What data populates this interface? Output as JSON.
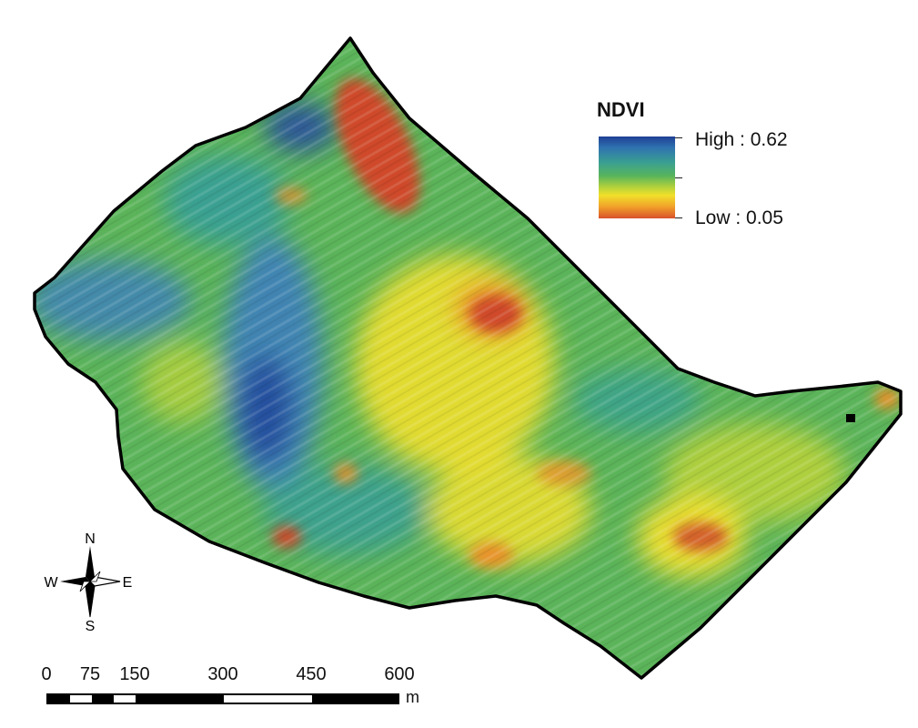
{
  "legend": {
    "title": "NDVI",
    "high_label": "High : 0.62",
    "low_label": "Low : 0.05",
    "colors": [
      "#1f3f95",
      "#3aa091",
      "#58b45c",
      "#f2e02a",
      "#d9512a"
    ]
  },
  "compass": {
    "n": "N",
    "s": "S",
    "e": "E",
    "w": "W"
  },
  "scale_bar": {
    "ticks": [
      "0",
      "75",
      "150",
      "300",
      "450",
      "600"
    ],
    "unit": "m"
  },
  "map_colors": {
    "boundary": "#000000",
    "dark_blue": "#27509f",
    "blue": "#3f82b7",
    "teal": "#3aa091",
    "green": "#5cb45a",
    "yellow_green": "#b7d23c",
    "yellow": "#f0df2e",
    "orange": "#e9922c",
    "red": "#cf4a2a"
  }
}
